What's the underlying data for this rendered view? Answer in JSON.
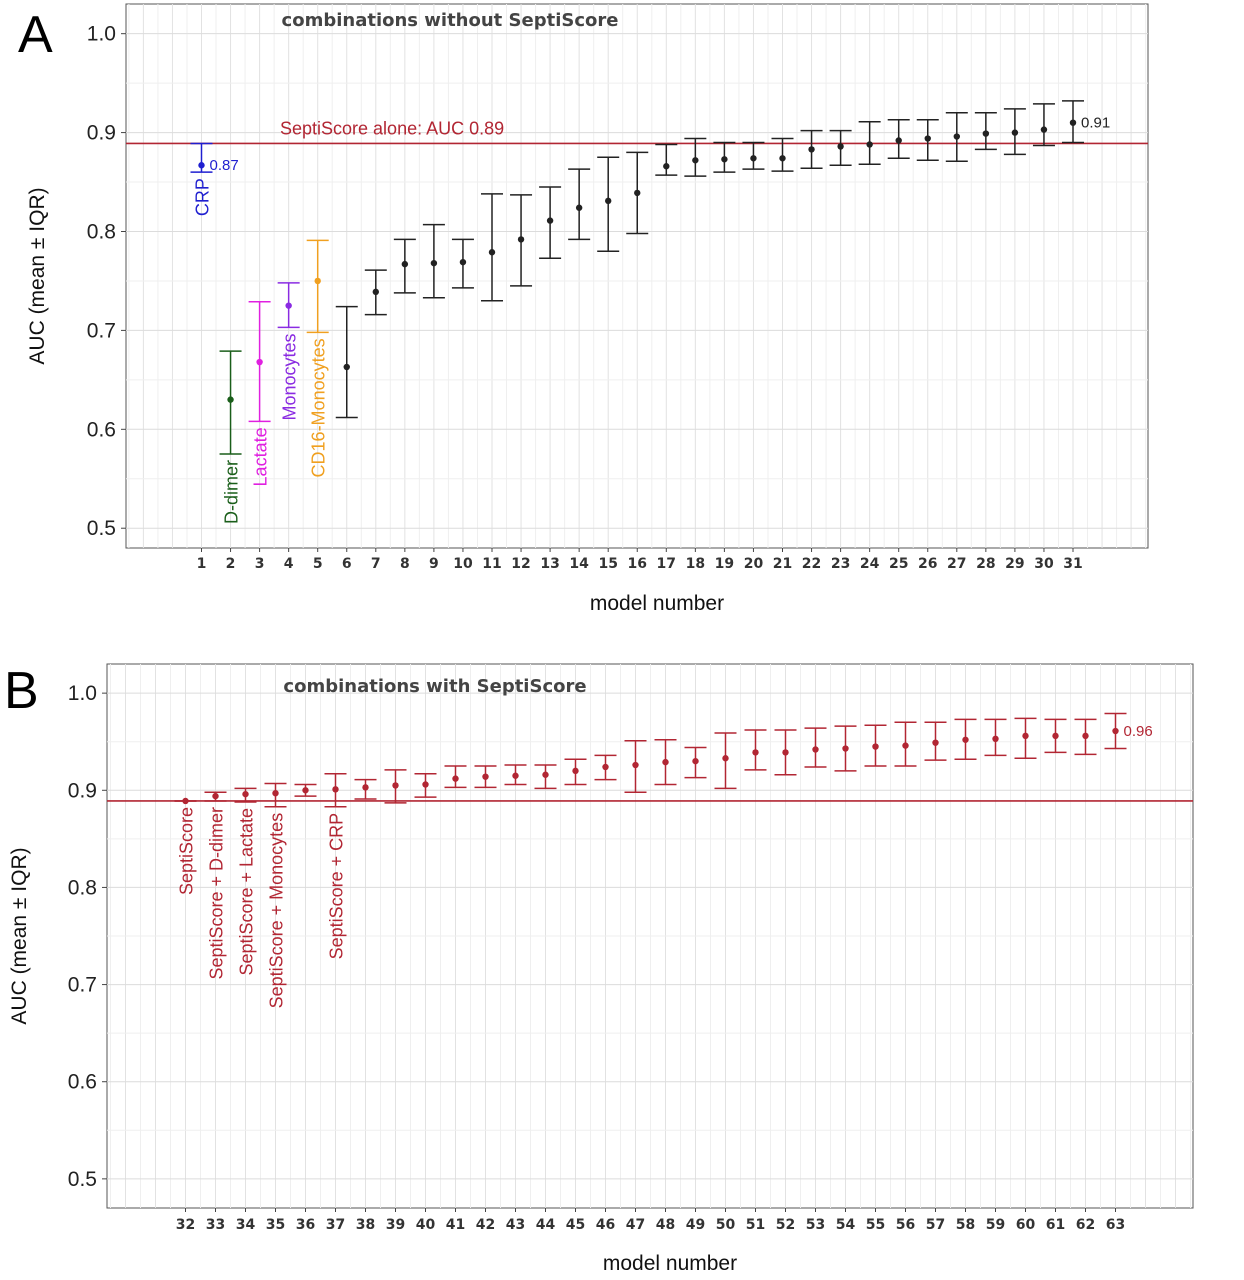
{
  "colors": {
    "black": "#222222",
    "red": "#b22633",
    "ref_line": "#b22633",
    "blue": "#1f1fd0",
    "green": "#1a5e1a",
    "magenta": "#e020e0",
    "purple": "#8a2be2",
    "orange": "#f0a020"
  },
  "chart_data": [
    {
      "panel": "A",
      "type": "scatter",
      "title": "combinations without SeptiScore",
      "xlabel": "model number",
      "ylabel": "AUC (mean ± IQR)",
      "ylim": [
        0.48,
        1.03
      ],
      "yticks": [
        0.5,
        0.6,
        0.7,
        0.8,
        0.9,
        1.0
      ],
      "grid": true,
      "reference_line": {
        "y": 0.889,
        "label": "SeptiScore alone: AUC 0.89"
      },
      "value_labels": [
        {
          "x": 1,
          "text": "0.87"
        },
        {
          "x": 31,
          "text": "0.91"
        }
      ],
      "marker_labels": [
        {
          "x": 1,
          "text": "CRP",
          "color": "blue"
        },
        {
          "x": 2,
          "text": "D-dimer",
          "color": "green"
        },
        {
          "x": 3,
          "text": "Lactate",
          "color": "magenta"
        },
        {
          "x": 4,
          "text": "Monocytes",
          "color": "purple"
        },
        {
          "x": 5,
          "text": "CD16-Monocytes",
          "color": "orange"
        }
      ],
      "series": [
        {
          "x": [
            1,
            2,
            3,
            4,
            5,
            6,
            7,
            8,
            9,
            10,
            11,
            12,
            13,
            14,
            15,
            16,
            17,
            18,
            19,
            20,
            21,
            22,
            23,
            24,
            25,
            26,
            27,
            28,
            29,
            30,
            31
          ],
          "mean": [
            0.867,
            0.63,
            0.668,
            0.725,
            0.75,
            0.663,
            0.739,
            0.767,
            0.768,
            0.769,
            0.779,
            0.792,
            0.811,
            0.824,
            0.831,
            0.839,
            0.866,
            0.872,
            0.873,
            0.874,
            0.874,
            0.883,
            0.886,
            0.888,
            0.892,
            0.894,
            0.896,
            0.899,
            0.9,
            0.903,
            0.91
          ],
          "low": [
            0.86,
            0.575,
            0.608,
            0.703,
            0.698,
            0.612,
            0.716,
            0.738,
            0.733,
            0.743,
            0.73,
            0.745,
            0.773,
            0.792,
            0.78,
            0.798,
            0.857,
            0.856,
            0.86,
            0.863,
            0.861,
            0.864,
            0.867,
            0.868,
            0.874,
            0.872,
            0.871,
            0.883,
            0.878,
            0.887,
            0.89
          ],
          "high": [
            0.889,
            0.679,
            0.729,
            0.748,
            0.791,
            0.724,
            0.761,
            0.792,
            0.807,
            0.792,
            0.838,
            0.837,
            0.845,
            0.863,
            0.875,
            0.88,
            0.888,
            0.894,
            0.89,
            0.89,
            0.894,
            0.902,
            0.902,
            0.911,
            0.913,
            0.913,
            0.92,
            0.92,
            0.924,
            0.929,
            0.932
          ],
          "colors": [
            "blue",
            "green",
            "magenta",
            "purple",
            "orange",
            "black",
            "black",
            "black",
            "black",
            "black",
            "black",
            "black",
            "black",
            "black",
            "black",
            "black",
            "black",
            "black",
            "black",
            "black",
            "black",
            "black",
            "black",
            "black",
            "black",
            "black",
            "black",
            "black",
            "black",
            "black",
            "black"
          ]
        }
      ]
    },
    {
      "panel": "B",
      "type": "scatter",
      "title": "combinations with SeptiScore",
      "xlabel": "model number",
      "ylabel": "AUC (mean ± IQR)",
      "ylim": [
        0.47,
        1.03
      ],
      "yticks": [
        0.5,
        0.6,
        0.7,
        0.8,
        0.9,
        1.0
      ],
      "grid": true,
      "reference_line": {
        "y": 0.889,
        "label": ""
      },
      "value_labels": [
        {
          "x": 63,
          "text": "0.96"
        }
      ],
      "marker_labels": [
        {
          "x": 32,
          "text": "SeptiScore",
          "color": "red"
        },
        {
          "x": 33,
          "text": "SeptiScore + D-dimer",
          "color": "red"
        },
        {
          "x": 34,
          "text": "SeptiScore + Lactate",
          "color": "red"
        },
        {
          "x": 35,
          "text": "SeptiScore + Monocytes",
          "color": "red"
        },
        {
          "x": 37,
          "text": "SeptiScore + CRP",
          "color": "red"
        }
      ],
      "series": [
        {
          "x": [
            32,
            33,
            34,
            35,
            36,
            37,
            38,
            39,
            40,
            41,
            42,
            43,
            44,
            45,
            46,
            47,
            48,
            49,
            50,
            51,
            52,
            53,
            54,
            55,
            56,
            57,
            58,
            59,
            60,
            61,
            62,
            63
          ],
          "mean": [
            0.889,
            0.894,
            0.896,
            0.897,
            0.9,
            0.901,
            0.903,
            0.905,
            0.906,
            0.912,
            0.914,
            0.915,
            0.916,
            0.92,
            0.924,
            0.926,
            0.929,
            0.93,
            0.933,
            0.939,
            0.939,
            0.942,
            0.943,
            0.945,
            0.946,
            0.949,
            0.952,
            0.953,
            0.956,
            0.956,
            0.956,
            0.961
          ],
          "low": [
            0.889,
            0.889,
            0.888,
            0.883,
            0.894,
            0.883,
            0.891,
            0.887,
            0.893,
            0.903,
            0.903,
            0.906,
            0.902,
            0.906,
            0.911,
            0.898,
            0.906,
            0.913,
            0.902,
            0.921,
            0.916,
            0.924,
            0.92,
            0.925,
            0.925,
            0.931,
            0.932,
            0.936,
            0.933,
            0.939,
            0.937,
            0.943
          ],
          "high": [
            0.889,
            0.898,
            0.902,
            0.907,
            0.906,
            0.917,
            0.911,
            0.921,
            0.917,
            0.925,
            0.925,
            0.926,
            0.926,
            0.932,
            0.936,
            0.951,
            0.952,
            0.944,
            0.959,
            0.962,
            0.962,
            0.964,
            0.966,
            0.967,
            0.97,
            0.97,
            0.973,
            0.973,
            0.974,
            0.973,
            0.973,
            0.979
          ],
          "colors": [
            "red"
          ]
        }
      ]
    }
  ]
}
